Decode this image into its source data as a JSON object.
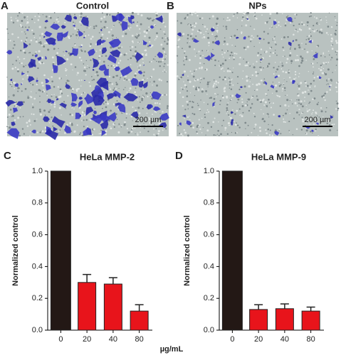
{
  "panels": [
    {
      "label": "A",
      "title": "Control",
      "scale_bar": "200 µm"
    },
    {
      "label": "B",
      "title": "NPs",
      "scale_bar": "200 µm"
    }
  ],
  "shared_xlabel": "µg/mL",
  "chart_data": [
    {
      "type": "bar",
      "panel_label": "C",
      "title": "HeLa MMP-2",
      "ylabel": "Normalized control",
      "categories": [
        "0",
        "20",
        "40",
        "80"
      ],
      "values": [
        1.0,
        0.3,
        0.29,
        0.12
      ],
      "errors": [
        0,
        0.05,
        0.04,
        0.04
      ],
      "colors": [
        "#231815",
        "#e8141b",
        "#e8141b",
        "#e8141b"
      ],
      "ylim": [
        0,
        1
      ],
      "yticks": [
        {
          "value": 0,
          "label": "0.0"
        },
        0.2,
        0.4,
        0.6,
        0.8,
        {
          "value": 1,
          "label": "1.0"
        }
      ]
    },
    {
      "type": "bar",
      "panel_label": "D",
      "title": "HeLa MMP-9",
      "ylabel": "Normalized control",
      "categories": [
        "0",
        "20",
        "40",
        "80"
      ],
      "values": [
        1.0,
        0.13,
        0.135,
        0.12
      ],
      "errors": [
        0,
        0.03,
        0.03,
        0.025
      ],
      "colors": [
        "#231815",
        "#e8141b",
        "#e8141b",
        "#e8141b"
      ],
      "ylim": [
        0,
        1
      ],
      "yticks": [
        {
          "value": 0,
          "label": "0.0"
        },
        0.2,
        0.4,
        0.6,
        0.8,
        {
          "value": 1,
          "label": "1.0"
        }
      ]
    }
  ]
}
